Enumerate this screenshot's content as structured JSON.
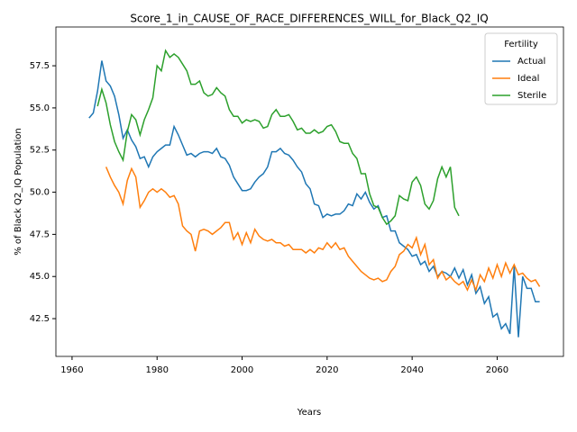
{
  "chart_data": {
    "type": "line",
    "title": "Score_1_in_CAUSE_OF_RACE_DIFFERENCES_WILL_for_Black_Q2_IQ",
    "x_label": "Years",
    "y_label": "% of Black Q2_IQ Population",
    "x": [
      1964,
      1965,
      1966,
      1967,
      1968,
      1969,
      1970,
      1971,
      1972,
      1973,
      1974,
      1975,
      1976,
      1977,
      1978,
      1979,
      1980,
      1981,
      1982,
      1983,
      1984,
      1985,
      1986,
      1987,
      1988,
      1989,
      1990,
      1991,
      1992,
      1993,
      1994,
      1995,
      1996,
      1997,
      1998,
      1999,
      2000,
      2001,
      2002,
      2003,
      2004,
      2005,
      2006,
      2007,
      2008,
      2009,
      2010,
      2011,
      2012,
      2013,
      2014,
      2015,
      2016,
      2017,
      2018,
      2019,
      2020,
      2021,
      2022,
      2023,
      2024,
      2025,
      2026,
      2027,
      2028,
      2029,
      2030,
      2031,
      2032,
      2033,
      2034,
      2035,
      2036,
      2037,
      2038,
      2039,
      2040,
      2041,
      2042,
      2043,
      2044,
      2045,
      2046,
      2047,
      2048,
      2049,
      2050,
      2051,
      2052,
      2053,
      2054,
      2055,
      2056,
      2057,
      2058,
      2059,
      2060,
      2061,
      2062,
      2063,
      2064,
      2065,
      2066,
      2067,
      2068,
      2069,
      2070
    ],
    "series": [
      {
        "name": "Actual",
        "color": "#1f77b4",
        "values": [
          54.4,
          54.7,
          56.0,
          57.8,
          56.6,
          56.3,
          55.7,
          54.6,
          53.2,
          53.7,
          53.1,
          52.7,
          52.0,
          52.1,
          51.5,
          52.1,
          52.4,
          52.6,
          52.8,
          52.8,
          53.9,
          53.4,
          52.8,
          52.2,
          52.3,
          52.1,
          52.3,
          52.4,
          52.4,
          52.3,
          52.6,
          52.1,
          52.0,
          51.6,
          50.9,
          50.5,
          50.1,
          50.1,
          50.2,
          50.6,
          50.9,
          51.1,
          51.5,
          52.4,
          52.4,
          52.6,
          52.3,
          52.2,
          51.9,
          51.5,
          51.2,
          50.5,
          50.2,
          49.3,
          49.2,
          48.5,
          48.7,
          48.6,
          48.7,
          48.7,
          48.9,
          49.3,
          49.2,
          49.9,
          49.6,
          50.0,
          49.4,
          49.0,
          49.2,
          48.5,
          48.6,
          47.7,
          47.7,
          47.0,
          46.8,
          46.6,
          46.2,
          46.3,
          45.7,
          45.9,
          45.3,
          45.6,
          45.0,
          45.3,
          45.2,
          45.0,
          45.5,
          44.9,
          45.4,
          44.5,
          45.1,
          44.0,
          44.4,
          43.4,
          43.8,
          42.6,
          42.8,
          41.9,
          42.2,
          41.6,
          45.6,
          41.4,
          45.0,
          44.3,
          44.3,
          43.5,
          43.5
        ]
      },
      {
        "name": "Ideal",
        "color": "#ff7f0e",
        "values": [
          null,
          null,
          null,
          null,
          51.5,
          50.9,
          50.4,
          50.0,
          49.3,
          50.7,
          51.4,
          50.9,
          49.1,
          49.5,
          50.0,
          50.2,
          50.0,
          50.2,
          50.0,
          49.7,
          49.8,
          49.3,
          48.0,
          47.7,
          47.5,
          46.5,
          47.7,
          47.8,
          47.7,
          47.5,
          47.7,
          47.9,
          48.2,
          48.2,
          47.2,
          47.6,
          46.9,
          47.6,
          47.0,
          47.8,
          47.4,
          47.2,
          47.1,
          47.2,
          47.0,
          47.0,
          46.8,
          46.9,
          46.6,
          46.6,
          46.6,
          46.4,
          46.6,
          46.4,
          46.7,
          46.6,
          47.0,
          46.7,
          47.0,
          46.6,
          46.7,
          46.2,
          45.9,
          45.6,
          45.3,
          45.1,
          44.9,
          44.8,
          44.9,
          44.7,
          44.8,
          45.3,
          45.6,
          46.3,
          46.5,
          46.9,
          46.7,
          47.3,
          46.3,
          46.9,
          45.7,
          46.0,
          44.9,
          45.3,
          44.8,
          45.0,
          44.7,
          44.5,
          44.7,
          44.2,
          44.8,
          44.2,
          45.1,
          44.7,
          45.5,
          44.9,
          45.7,
          45.0,
          45.8,
          45.2,
          45.7,
          45.1,
          45.2,
          44.9,
          44.7,
          44.8,
          44.4
        ]
      },
      {
        "name": "Sterile",
        "color": "#2ca02c",
        "values": [
          null,
          null,
          55.1,
          56.1,
          55.3,
          54.0,
          53.0,
          52.4,
          51.9,
          53.6,
          54.6,
          54.3,
          53.4,
          54.3,
          54.9,
          55.6,
          57.5,
          57.2,
          58.4,
          58.0,
          58.2,
          58.0,
          57.6,
          57.2,
          56.4,
          56.4,
          56.6,
          55.9,
          55.7,
          55.8,
          56.2,
          55.9,
          55.7,
          54.9,
          54.5,
          54.5,
          54.1,
          54.3,
          54.2,
          54.3,
          54.2,
          53.8,
          53.9,
          54.6,
          54.9,
          54.5,
          54.5,
          54.6,
          54.2,
          53.7,
          53.8,
          53.5,
          53.5,
          53.7,
          53.5,
          53.6,
          53.9,
          54.0,
          53.6,
          53.0,
          52.9,
          52.9,
          52.3,
          52.0,
          51.1,
          51.1,
          49.9,
          49.2,
          49.1,
          48.5,
          48.1,
          48.3,
          48.6,
          49.8,
          49.6,
          49.5,
          50.6,
          50.9,
          50.4,
          49.3,
          49.0,
          49.5,
          50.8,
          51.5,
          50.9,
          51.5,
          49.1,
          48.6,
          null,
          null,
          null,
          null,
          null,
          null,
          null,
          null,
          null,
          null,
          null,
          null,
          null,
          null,
          null,
          null,
          null,
          null,
          null
        ]
      }
    ],
    "xlim": [
      1956.2,
      2075.6
    ],
    "ylim": [
      40.26,
      59.8
    ],
    "xticks": [
      1960,
      1980,
      2000,
      2020,
      2040,
      2060
    ],
    "yticks": [
      42.5,
      {
        "value": 45,
        "label": "45.0"
      },
      47.5,
      {
        "value": 50,
        "label": "50.0"
      },
      52.5,
      {
        "value": 55,
        "label": "55.0"
      },
      57.5
    ],
    "legend_title": "Fertility",
    "legend": "upper right",
    "grid": false
  }
}
